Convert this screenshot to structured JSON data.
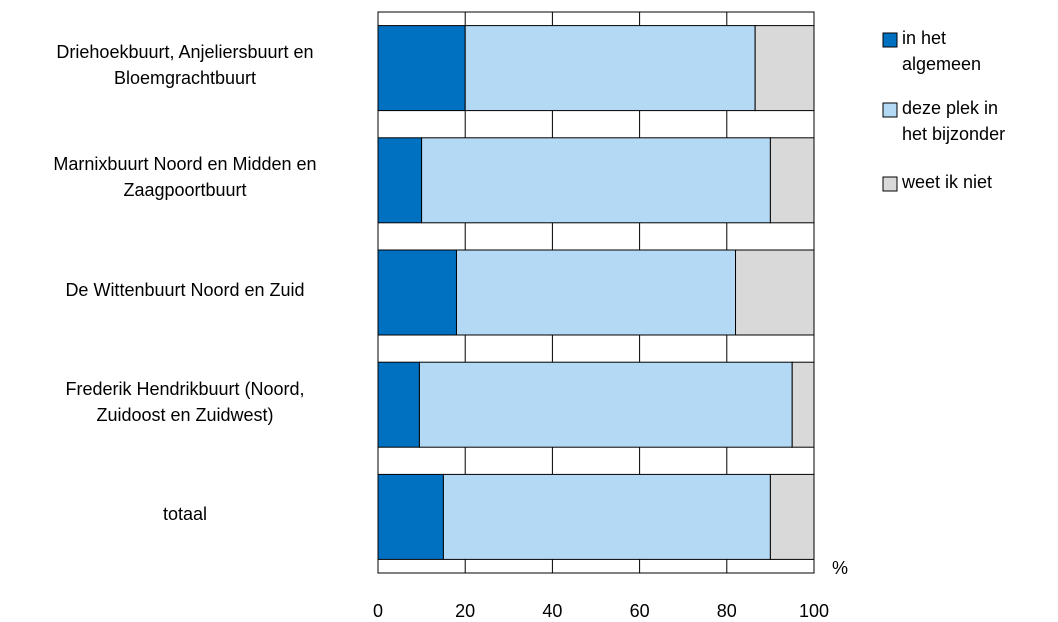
{
  "chart_data": {
    "type": "stacked-barh",
    "categories": [
      "Driehoekbuurt, Anjeliersbuurt en\nBloemgrachtbuurt",
      "Marnixbuurt Noord en Midden en\nZaagpoortbuurt",
      "De Wittenbuurt Noord en Zuid",
      "Frederik Hendrikbuurt (Noord,\nZuidoost en Zuidwest)",
      "totaal"
    ],
    "series": [
      {
        "name": "in het\nalgemeen",
        "color": "#0070c0",
        "values": [
          20,
          10,
          18,
          9.5,
          15
        ]
      },
      {
        "name": "deze plek in\nhet bijzonder",
        "color": "#b3d9f5",
        "values": [
          66.5,
          80,
          64,
          85.5,
          75
        ]
      },
      {
        "name": "weet ik niet",
        "color": "#d9d9d9",
        "values": [
          13.5,
          10,
          18,
          5,
          10
        ]
      }
    ],
    "xlim": [
      0,
      100
    ],
    "xticks": [
      0,
      20,
      40,
      60,
      80,
      100
    ],
    "xlabel": "%",
    "grid": true,
    "legend": "right"
  }
}
